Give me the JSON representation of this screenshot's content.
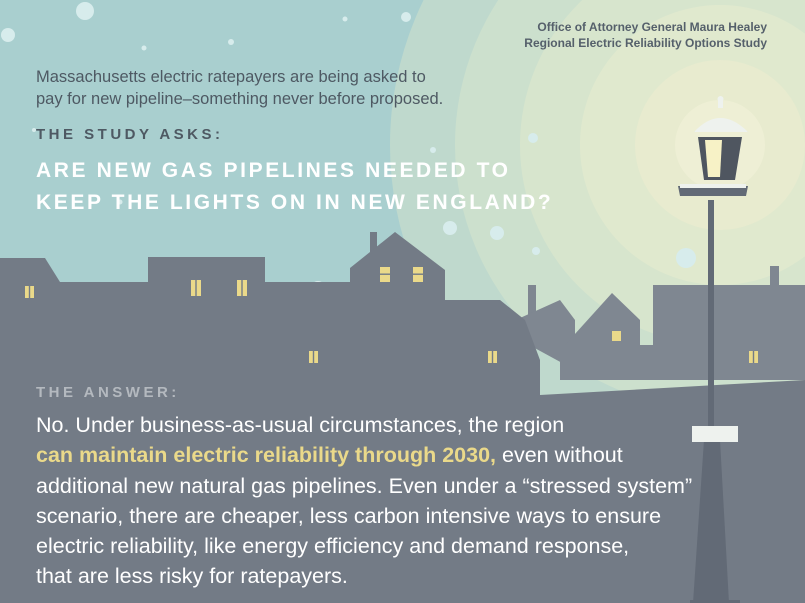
{
  "header": {
    "office_line1": "Office of Attorney General Maura Healey",
    "office_line2": "Regional Electric Reliability Options Study"
  },
  "intro": {
    "line1": "Massachusetts electric ratepayers are being asked to",
    "line2": "pay for new pipeline–something never before proposed."
  },
  "study": {
    "label": "THE STUDY ASKS:",
    "question_line1": "ARE NEW GAS PIPELINES NEEDED TO",
    "question_line2": "KEEP THE LIGHTS ON IN NEW ENGLAND?"
  },
  "answer": {
    "label": "THE ANSWER:",
    "lead": "No. Under business-as-usual circumstances, the region",
    "highlight": "can maintain electric reliability through 2030,",
    "after_highlight": "even without",
    "line3": "additional new natural gas pipelines. Even under a “stressed system”",
    "line4": "scenario, there are cheaper, less carbon intensive ways to ensure",
    "line5": "electric reliability, like energy efficiency and demand response,",
    "line6": "that are less risky for ratepayers."
  },
  "colors": {
    "sky": "#a9cfcf",
    "houses_back": "#7f8791",
    "houses_front": "#737b86",
    "window": "#ead98a",
    "highlight": "#ead98a",
    "lamp_post": "#626a76",
    "glow": "#f2f0cf"
  }
}
